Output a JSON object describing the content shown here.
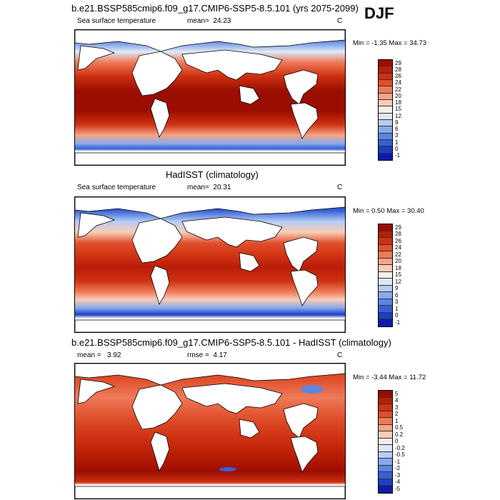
{
  "season": "DJF",
  "panels": [
    {
      "title": "b.e21.BSSP585cmip6.f09_g17.CMIP6-SSP5-8.5.101 (yrs 2075-2099)",
      "left_label": "Sea surface temperature",
      "center_label": "mean=",
      "center_value": "24.23",
      "units": "C",
      "min_label": "Min = -1.35 Max = 34.73",
      "legend_levels": [
        "29",
        "28",
        "26",
        "24",
        "22",
        "20",
        "18",
        "15",
        "12",
        "9",
        "6",
        "3",
        "1",
        "0",
        "-1"
      ],
      "legend_colors": [
        "#9b0d00",
        "#b81e06",
        "#cf3112",
        "#e0502c",
        "#ee7a58",
        "#f5a585",
        "#f9cdb7",
        "#fbeee6",
        "#dde9f8",
        "#b5cdf3",
        "#87aaec",
        "#5b85e3",
        "#3560d6",
        "#1c3ec4",
        "#0b1da8"
      ],
      "bottom_color": "#0a0a8e"
    },
    {
      "title": "HadISST (climatology)",
      "left_label": "Sea surface temperature",
      "center_label": "mean=",
      "center_value": "20.31",
      "units": "C",
      "min_label": "Min =  0.50 Max = 30.40",
      "legend_levels": [
        "29",
        "28",
        "26",
        "24",
        "22",
        "20",
        "18",
        "15",
        "12",
        "9",
        "6",
        "3",
        "1",
        "0",
        "-1"
      ],
      "legend_colors": [
        "#9b0d00",
        "#b81e06",
        "#cf3112",
        "#e0502c",
        "#ee7a58",
        "#f5a585",
        "#f9cdb7",
        "#fbeee6",
        "#dde9f8",
        "#b5cdf3",
        "#87aaec",
        "#5b85e3",
        "#3560d6",
        "#1c3ec4",
        "#0b1da8"
      ],
      "bottom_color": "#0a0a8e"
    },
    {
      "title": "b.e21.BSSP585cmip6.f09_g17.CMIP6-SSP5-8.5.101 - HadISST (climatology)",
      "left_label": "mean =",
      "left_value": "3.92",
      "center_label": "rmse =",
      "center_value": "4.17",
      "units": "C",
      "min_label": "Min = -3.44 Max = 11.72",
      "legend_levels": [
        "5",
        "4",
        "3",
        "2",
        "1",
        "0.5",
        "0.2",
        "0",
        "-0.2",
        "-0.5",
        "-1",
        "-2",
        "-3",
        "-4",
        "-5"
      ],
      "legend_colors": [
        "#9b0d00",
        "#b81e06",
        "#cf3112",
        "#e0502c",
        "#ee7a58",
        "#f5a585",
        "#f9cdb7",
        "#fbeee6",
        "#dde9f8",
        "#b5cdf3",
        "#87aaec",
        "#5b85e3",
        "#3560d6",
        "#1c3ec4",
        "#0b1da8"
      ],
      "bottom_color": "#0a0a8e"
    }
  ]
}
